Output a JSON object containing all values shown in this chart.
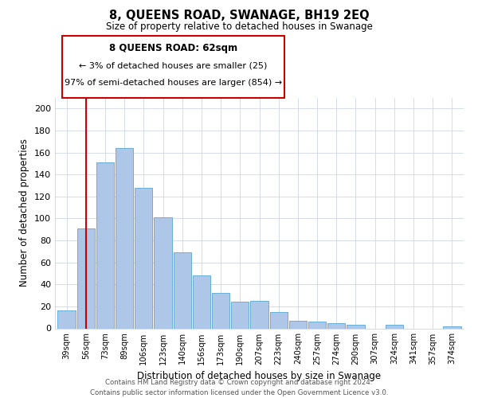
{
  "title": "8, QUEENS ROAD, SWANAGE, BH19 2EQ",
  "subtitle": "Size of property relative to detached houses in Swanage",
  "xlabel": "Distribution of detached houses by size in Swanage",
  "ylabel": "Number of detached properties",
  "bar_labels": [
    "39sqm",
    "56sqm",
    "73sqm",
    "89sqm",
    "106sqm",
    "123sqm",
    "140sqm",
    "156sqm",
    "173sqm",
    "190sqm",
    "207sqm",
    "223sqm",
    "240sqm",
    "257sqm",
    "274sqm",
    "290sqm",
    "307sqm",
    "324sqm",
    "341sqm",
    "357sqm",
    "374sqm"
  ],
  "bar_values": [
    16,
    91,
    151,
    164,
    128,
    101,
    69,
    48,
    32,
    24,
    25,
    15,
    7,
    6,
    5,
    3,
    0,
    3,
    0,
    0,
    2
  ],
  "bar_color": "#aec6e8",
  "bar_edge_color": "#6aafd6",
  "vline_x": 1,
  "vline_color": "#cc0000",
  "ylim": [
    0,
    210
  ],
  "yticks": [
    0,
    20,
    40,
    60,
    80,
    100,
    120,
    140,
    160,
    180,
    200
  ],
  "annotation_title": "8 QUEENS ROAD: 62sqm",
  "annotation_line1": "← 3% of detached houses are smaller (25)",
  "annotation_line2": "97% of semi-detached houses are larger (854) →",
  "annotation_box_color": "#ffffff",
  "annotation_box_edge": "#cc0000",
  "footer1": "Contains HM Land Registry data © Crown copyright and database right 2024.",
  "footer2": "Contains public sector information licensed under the Open Government Licence v3.0.",
  "bg_color": "#ffffff",
  "grid_color": "#d0d8e8"
}
